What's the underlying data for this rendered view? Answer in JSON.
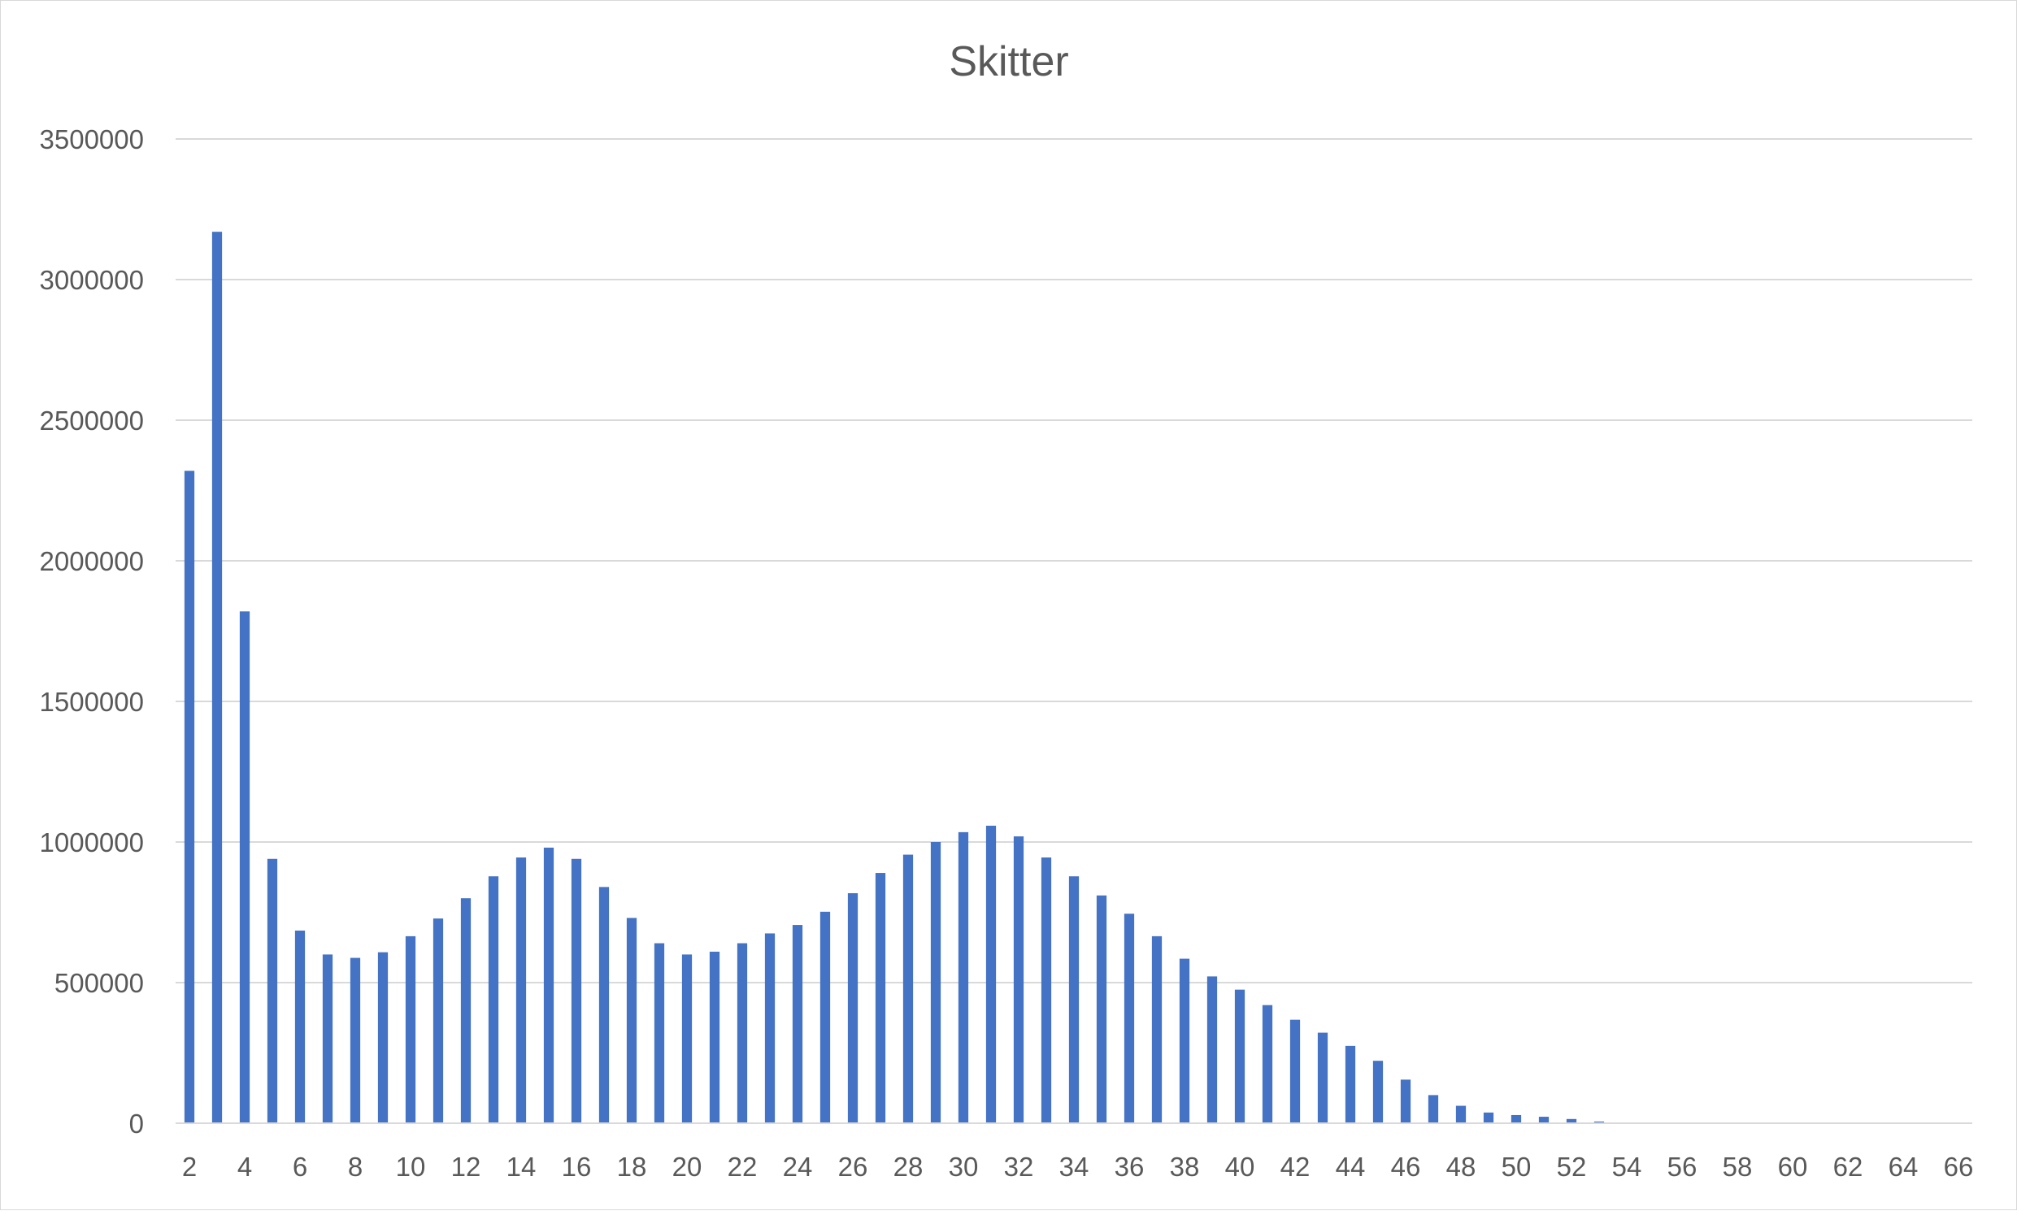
{
  "chart_data": {
    "type": "bar",
    "title": "Skitter",
    "xlabel": "",
    "ylabel": "",
    "ylim": [
      0,
      3500000
    ],
    "y_ticks": [
      0,
      500000,
      1000000,
      1500000,
      2000000,
      2500000,
      3000000,
      3500000
    ],
    "y_tick_labels": [
      "0",
      "500000",
      "1000000",
      "1500000",
      "2000000",
      "2500000",
      "3000000",
      "3500000"
    ],
    "x_tick_labels": [
      "2",
      "4",
      "6",
      "8",
      "10",
      "12",
      "14",
      "16",
      "18",
      "20",
      "22",
      "24",
      "26",
      "28",
      "30",
      "32",
      "34",
      "36",
      "38",
      "40",
      "42",
      "44",
      "46",
      "48",
      "50",
      "52",
      "54",
      "56",
      "58",
      "60",
      "62",
      "64",
      "66"
    ],
    "categories": [
      2,
      3,
      4,
      5,
      6,
      7,
      8,
      9,
      10,
      11,
      12,
      13,
      14,
      15,
      16,
      17,
      18,
      19,
      20,
      21,
      22,
      23,
      24,
      25,
      26,
      27,
      28,
      29,
      30,
      31,
      32,
      33,
      34,
      35,
      36,
      37,
      38,
      39,
      40,
      41,
      42,
      43,
      44,
      45,
      46,
      47,
      48,
      49,
      50,
      51,
      52,
      53,
      54,
      55,
      56,
      57,
      58,
      59,
      60,
      61,
      62,
      63,
      64,
      65,
      66
    ],
    "values": [
      2320000,
      3170000,
      1820000,
      940000,
      685000,
      600000,
      588000,
      608000,
      665000,
      728000,
      800000,
      878000,
      945000,
      980000,
      940000,
      840000,
      730000,
      640000,
      600000,
      610000,
      640000,
      675000,
      705000,
      752000,
      818000,
      890000,
      955000,
      1000000,
      1035000,
      1058000,
      1020000,
      945000,
      878000,
      810000,
      745000,
      665000,
      585000,
      522000,
      475000,
      420000,
      368000,
      322000,
      275000,
      222000,
      155000,
      100000,
      62000,
      38000,
      29000,
      23000,
      15000,
      6000,
      2000,
      1000,
      500,
      300,
      200,
      100,
      100,
      0,
      0,
      0,
      0,
      0,
      0
    ],
    "grid": true,
    "legend": "none",
    "colors": {
      "bar": "#4472c4",
      "grid": "#d9d9d9",
      "text": "#595959"
    }
  }
}
